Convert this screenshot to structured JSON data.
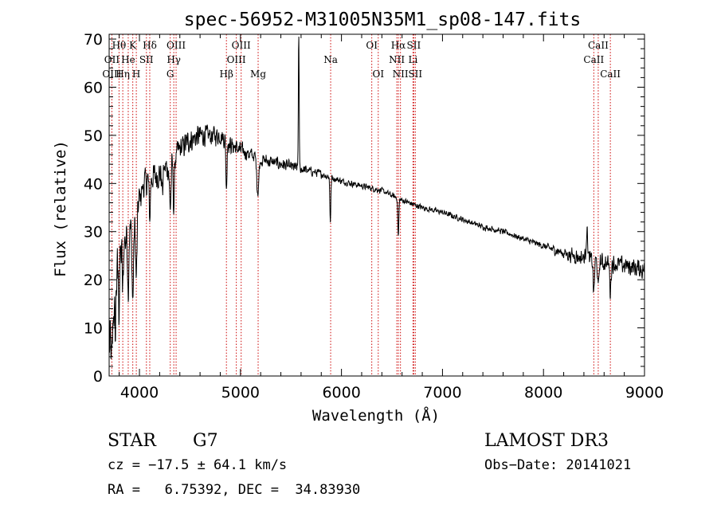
{
  "chart_data": {
    "type": "line",
    "title": "spec-56952-M31005N35M1_sp08-147.fits",
    "xlabel": "Wavelength (Å)",
    "ylabel": "Flux (relative)",
    "xlim": [
      3700,
      9000
    ],
    "ylim": [
      0,
      71
    ],
    "x_ticks": [
      4000,
      5000,
      6000,
      7000,
      8000,
      9000
    ],
    "x_tick_labels": [
      "4000",
      "5000",
      "6000",
      "7000",
      "8000",
      "9000"
    ],
    "y_ticks": [
      0,
      10,
      20,
      30,
      40,
      50,
      60,
      70
    ],
    "y_tick_labels": [
      "0",
      "10",
      "20",
      "30",
      "40",
      "50",
      "60",
      "70"
    ],
    "line_color": "#000000",
    "marker_color": "#cc0000",
    "series": [
      {
        "name": "flux",
        "continuum": [
          [
            3700,
            5
          ],
          [
            3720,
            8
          ],
          [
            3760,
            18
          ],
          [
            3800,
            24
          ],
          [
            3850,
            28
          ],
          [
            3900,
            30
          ],
          [
            3950,
            32
          ],
          [
            4000,
            37
          ],
          [
            4050,
            40
          ],
          [
            4100,
            41
          ],
          [
            4200,
            42
          ],
          [
            4300,
            44
          ],
          [
            4400,
            47
          ],
          [
            4500,
            49
          ],
          [
            4600,
            50
          ],
          [
            4700,
            50
          ],
          [
            4800,
            50
          ],
          [
            4900,
            48
          ],
          [
            5000,
            47
          ],
          [
            5100,
            46
          ],
          [
            5200,
            45
          ],
          [
            5400,
            44
          ],
          [
            5600,
            43
          ],
          [
            5800,
            42
          ],
          [
            6000,
            40.5
          ],
          [
            6200,
            39.5
          ],
          [
            6400,
            38.5
          ],
          [
            6600,
            36.5
          ],
          [
            6800,
            35
          ],
          [
            7000,
            34
          ],
          [
            7200,
            32.5
          ],
          [
            7400,
            31
          ],
          [
            7600,
            30
          ],
          [
            7800,
            28.5
          ],
          [
            8000,
            27
          ],
          [
            8200,
            25.5
          ],
          [
            8400,
            24.5
          ],
          [
            8600,
            23.5
          ],
          [
            8800,
            23
          ],
          [
            9000,
            22
          ]
        ],
        "absorption": [
          [
            3727,
            8,
            6
          ],
          [
            3760,
            10,
            5
          ],
          [
            3798,
            9,
            5
          ],
          [
            3835,
            10,
            5
          ],
          [
            3889,
            12,
            5
          ],
          [
            3934,
            16,
            7
          ],
          [
            3969,
            14,
            7
          ],
          [
            4102,
            8,
            6
          ],
          [
            4227,
            4,
            6
          ],
          [
            4305,
            9,
            8
          ],
          [
            4340,
            10,
            6
          ],
          [
            4861,
            10,
            5
          ],
          [
            5172,
            7,
            10
          ],
          [
            5890,
            9,
            5
          ],
          [
            6563,
            8,
            5
          ],
          [
            8498,
            7,
            6
          ],
          [
            8542,
            6,
            6
          ],
          [
            8662,
            6,
            6
          ]
        ],
        "emission": [
          [
            5577,
            28,
            4
          ],
          [
            8430,
            6,
            8
          ]
        ],
        "noise": [
          [
            3700,
            8
          ],
          [
            4000,
            4
          ],
          [
            4500,
            3
          ],
          [
            5000,
            2
          ],
          [
            6000,
            0.8
          ],
          [
            7000,
            0.7
          ],
          [
            8000,
            0.8
          ],
          [
            8300,
            2
          ],
          [
            9000,
            2.5
          ]
        ]
      }
    ],
    "spectral_lines": [
      {
        "label": "Hθ",
        "wavelength": 3798,
        "row": 1
      },
      {
        "label": "OII",
        "wavelength": 3727,
        "row": 2
      },
      {
        "label": "OIII",
        "wavelength": 3727,
        "row": 3
      },
      {
        "label": "He",
        "wavelength": 3889,
        "row": 2
      },
      {
        "label": "Hη",
        "wavelength": 3835,
        "row": 3
      },
      {
        "label": "K",
        "wavelength": 3934,
        "row": 1
      },
      {
        "label": "H",
        "wavelength": 3969,
        "row": 3
      },
      {
        "label": "SII",
        "wavelength": 4069,
        "row": 2
      },
      {
        "label": "Hδ",
        "wavelength": 4102,
        "row": 1
      },
      {
        "label": "OIII",
        "wavelength": 4363,
        "row": 1
      },
      {
        "label": "Hγ",
        "wavelength": 4340,
        "row": 2
      },
      {
        "label": "G",
        "wavelength": 4305,
        "row": 3
      },
      {
        "label": "Hβ",
        "wavelength": 4861,
        "row": 3
      },
      {
        "label": "OIII",
        "wavelength": 5007,
        "row": 1
      },
      {
        "label": "OIII",
        "wavelength": 4959,
        "row": 2
      },
      {
        "label": "Mg",
        "wavelength": 5175,
        "row": 3
      },
      {
        "label": "Na",
        "wavelength": 5893,
        "row": 2
      },
      {
        "label": "OI",
        "wavelength": 6300,
        "row": 1
      },
      {
        "label": "OI",
        "wavelength": 6364,
        "row": 3
      },
      {
        "label": "Hα",
        "wavelength": 6563,
        "row": 1
      },
      {
        "label": "SII",
        "wavelength": 6716,
        "row": 1
      },
      {
        "label": "NII",
        "wavelength": 6548,
        "row": 2
      },
      {
        "label": "Li",
        "wavelength": 6708,
        "row": 2
      },
      {
        "label": "NII",
        "wavelength": 6584,
        "row": 3
      },
      {
        "label": "SII",
        "wavelength": 6731,
        "row": 3
      },
      {
        "label": "CaII",
        "wavelength": 8542,
        "row": 1
      },
      {
        "label": "CaII",
        "wavelength": 8498,
        "row": 2
      },
      {
        "label": "CaII",
        "wavelength": 8662,
        "row": 3
      }
    ]
  },
  "info": {
    "class": "STAR",
    "subclass": "G7",
    "survey": "LAMOST DR3",
    "redshift": "cz = −17.5 ± 64.1 km/s",
    "obs_date": "Obs−Date: 20141021",
    "coords": "RA =   6.75392, DEC =  34.83930"
  }
}
